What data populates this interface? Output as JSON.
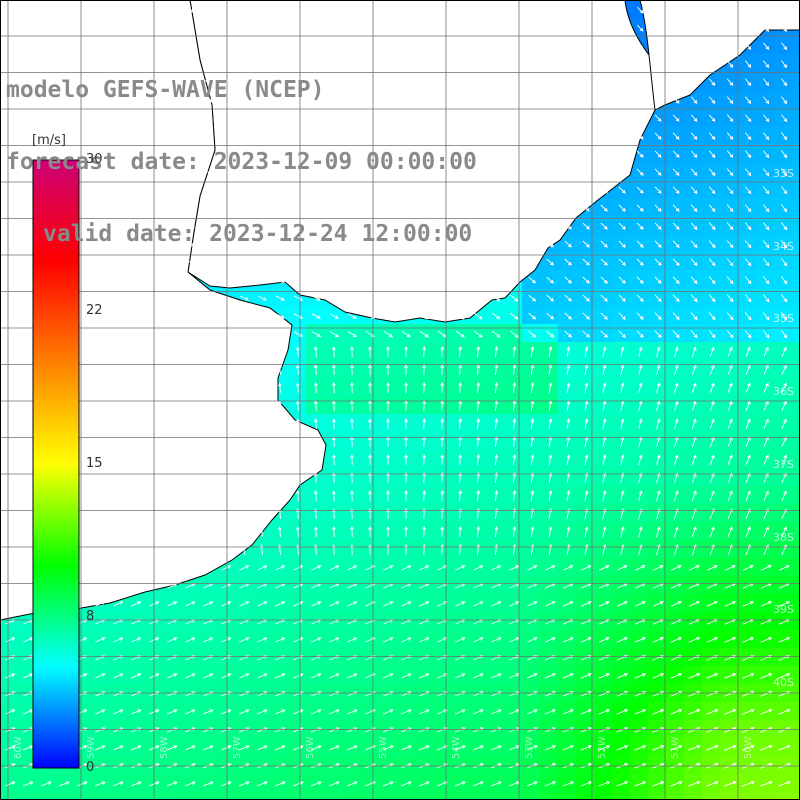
{
  "title": {
    "model": "modelo GEFS-WAVE (NCEP)",
    "forecast_date": "forecast date: 2023-12-09 00:00:00",
    "valid_date": "valid date: 2023-12-24 12:00:00"
  },
  "colorbar": {
    "unit": "[m/s]",
    "ticks": [
      "30",
      "22",
      "15",
      "8",
      "0"
    ],
    "stops": [
      "#0000ff",
      "#00ffff",
      "#00ff00",
      "#ffff00",
      "#ff8000",
      "#ff0000",
      "#cc0077"
    ],
    "min": 0,
    "max": 30
  },
  "grid": {
    "lat_labels": [
      "33S",
      "34S",
      "35S",
      "36S",
      "37S",
      "38S",
      "39S",
      "40S"
    ],
    "lon_labels": [
      "60W",
      "59W",
      "58W",
      "57W",
      "56W",
      "55W",
      "54W",
      "53W",
      "52W",
      "51W",
      "50W"
    ]
  },
  "colors": {
    "land": "#ffffff",
    "coast": "#000000",
    "grid": "#707070",
    "vector": "#ffffff"
  },
  "map": {
    "region": "Rio de la Plata / Uruguay coast"
  }
}
